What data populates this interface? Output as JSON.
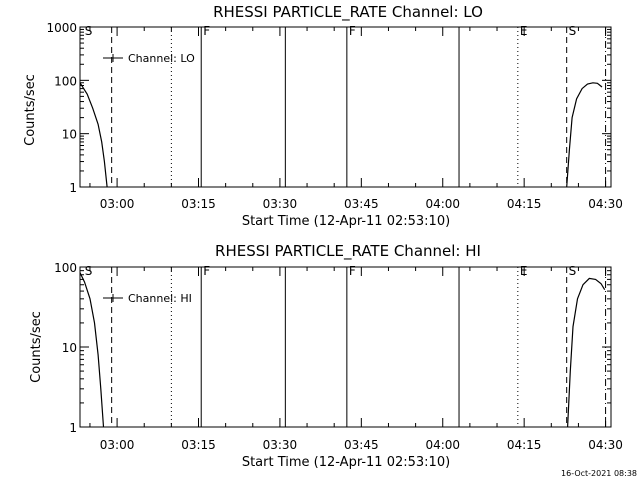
{
  "chart_data": [
    {
      "type": "line",
      "title": "RHESSI PARTICLE_RATE Channel: LO",
      "xlabel": "Start Time (12-Apr-11 02:53:10)",
      "ylabel": "Counts/sec",
      "y_scale": "log",
      "xlim": [
        "02:53:10",
        "04:31:00"
      ],
      "ylim": [
        1,
        1000
      ],
      "x_ticks": [
        "03:00",
        "03:15",
        "03:30",
        "03:45",
        "04:00",
        "04:15",
        "04:30"
      ],
      "y_ticks": [
        "1",
        "10",
        "100",
        "1000"
      ],
      "legend": {
        "position": "top-left",
        "entries": [
          "Channel: LO"
        ]
      },
      "series": [
        {
          "name": "Channel: LO",
          "x": [
            "02:53:10",
            "02:54:30",
            "02:55:30",
            "02:56:30",
            "02:57:10",
            "02:57:40",
            "02:58:10",
            "04:22:50",
            "04:23:20",
            "04:23:50",
            "04:24:40",
            "04:25:40",
            "04:26:40",
            "04:27:40",
            "04:28:30",
            "04:29:20"
          ],
          "y": [
            90,
            55,
            30,
            15,
            7,
            3,
            1,
            1,
            5,
            20,
            45,
            70,
            85,
            90,
            88,
            75
          ]
        }
      ],
      "markers": [
        {
          "label": "S",
          "time": "02:53:40",
          "style": "none"
        },
        {
          "label": "",
          "time": "02:59:00",
          "style": "dashed"
        },
        {
          "label": "",
          "time": "03:10:00",
          "style": "dotted"
        },
        {
          "label": "F",
          "time": "03:15:30",
          "style": "solid"
        },
        {
          "label": "",
          "time": "03:31:00",
          "style": "solid"
        },
        {
          "label": "F",
          "time": "03:42:20",
          "style": "solid"
        },
        {
          "label": "",
          "time": "04:03:00",
          "style": "solid"
        },
        {
          "label": "E",
          "time": "04:13:50",
          "style": "dotted"
        },
        {
          "label": "S",
          "time": "04:22:50",
          "style": "dashed"
        },
        {
          "label": "",
          "time": "04:30:00",
          "style": "dashdot"
        }
      ]
    },
    {
      "type": "line",
      "title": "RHESSI PARTICLE_RATE Channel: HI",
      "xlabel": "Start Time (12-Apr-11 02:53:10)",
      "ylabel": "Counts/sec",
      "y_scale": "log",
      "xlim": [
        "02:53:10",
        "04:31:00"
      ],
      "ylim": [
        1,
        100
      ],
      "x_ticks": [
        "03:00",
        "03:15",
        "03:30",
        "03:45",
        "04:00",
        "04:15",
        "04:30"
      ],
      "y_ticks": [
        "1",
        "10",
        "100"
      ],
      "legend": {
        "position": "top-left",
        "entries": [
          "Channel: HI"
        ]
      },
      "series": [
        {
          "name": "Channel: HI",
          "x": [
            "02:53:10",
            "02:54:00",
            "02:55:00",
            "02:55:50",
            "02:56:30",
            "02:57:00",
            "02:57:30",
            "04:23:00",
            "04:23:30",
            "04:24:00",
            "04:24:50",
            "04:25:50",
            "04:27:00",
            "04:28:10",
            "04:29:10",
            "04:29:50"
          ],
          "y": [
            85,
            65,
            40,
            20,
            8,
            3,
            1,
            1,
            5,
            18,
            40,
            60,
            72,
            70,
            62,
            52
          ]
        }
      ],
      "markers": [
        {
          "label": "S",
          "time": "02:53:40",
          "style": "none"
        },
        {
          "label": "",
          "time": "02:59:00",
          "style": "dashed"
        },
        {
          "label": "",
          "time": "03:10:00",
          "style": "dotted"
        },
        {
          "label": "F",
          "time": "03:15:30",
          "style": "solid"
        },
        {
          "label": "",
          "time": "03:31:00",
          "style": "solid"
        },
        {
          "label": "F",
          "time": "03:42:20",
          "style": "solid"
        },
        {
          "label": "",
          "time": "04:03:00",
          "style": "solid"
        },
        {
          "label": "E",
          "time": "04:13:50",
          "style": "dotted"
        },
        {
          "label": "S",
          "time": "04:22:50",
          "style": "dashed"
        },
        {
          "label": "",
          "time": "04:30:00",
          "style": "dashdot"
        }
      ]
    }
  ],
  "footer": {
    "timestamp": "16-Oct-2021 08:38"
  }
}
